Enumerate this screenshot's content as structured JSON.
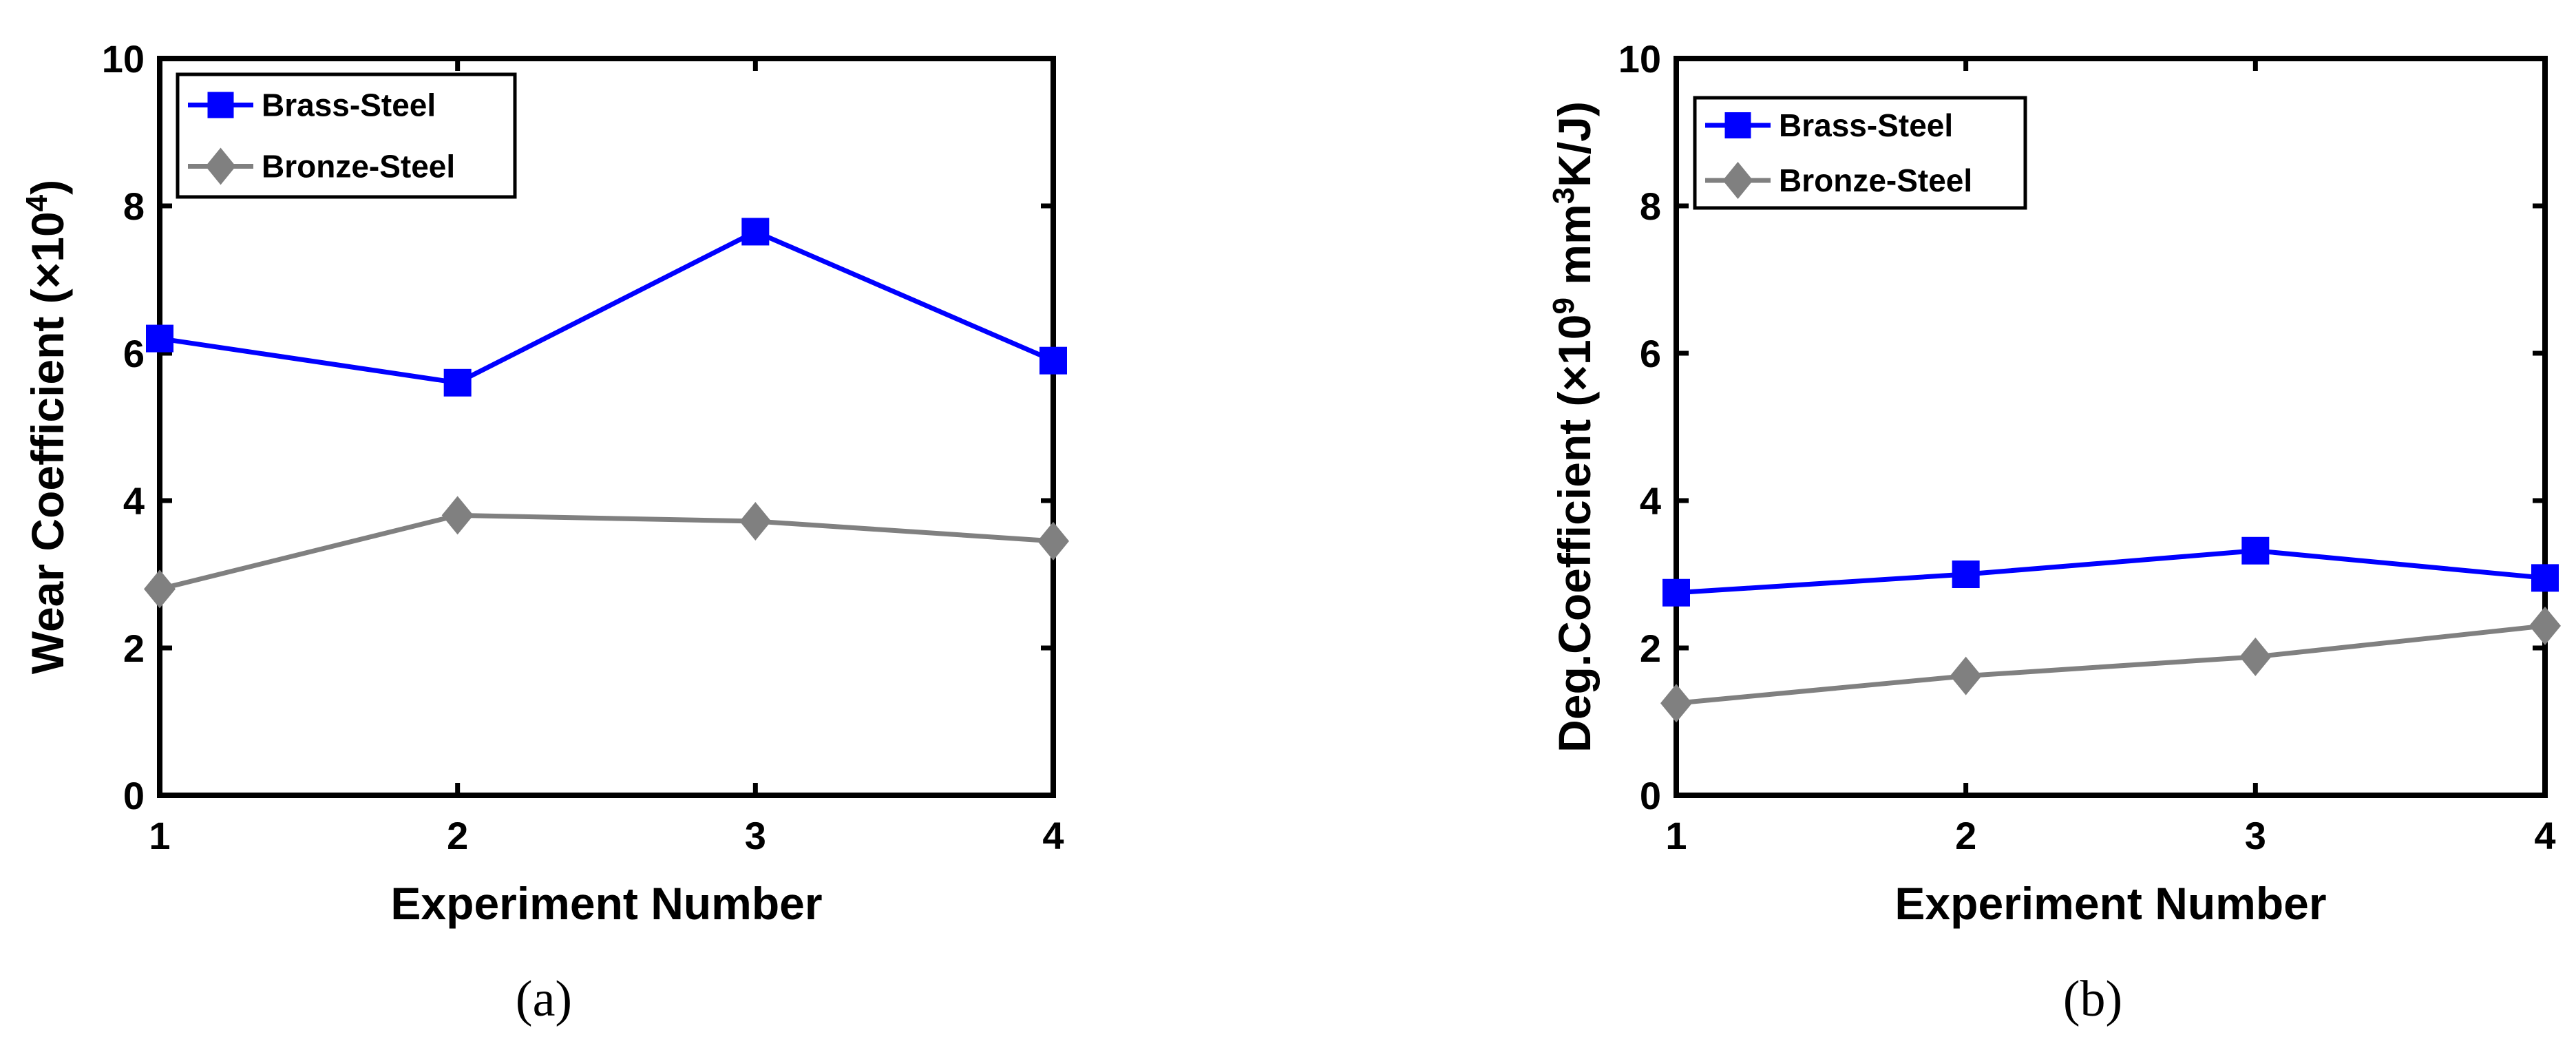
{
  "chart_data": [
    {
      "type": "line",
      "caption": "(a)",
      "xlabel": "Experiment Number",
      "ylabel": {
        "text": "Wear Coefficient (×10",
        "sup": "4",
        "tail": ")"
      },
      "x": [
        1,
        2,
        3,
        4
      ],
      "xticks": [
        "1",
        "2",
        "3",
        "4"
      ],
      "yticks": [
        "0",
        "2",
        "4",
        "6",
        "8",
        "10"
      ],
      "xlim": [
        1,
        4
      ],
      "ylim": [
        0,
        10
      ],
      "grid": false,
      "legend_position": "top-left",
      "series": [
        {
          "name": "Brass-Steel",
          "values": [
            6.2,
            5.6,
            7.65,
            5.9
          ],
          "color": "#0000ff",
          "marker": "square"
        },
        {
          "name": "Bronze-Steel",
          "values": [
            2.8,
            3.8,
            3.72,
            3.45
          ],
          "color": "#808080",
          "marker": "diamond"
        }
      ]
    },
    {
      "type": "line",
      "caption": "(b)",
      "xlabel": "Experiment Number",
      "ylabel": {
        "text": "Deg.Coefficient (×10",
        "sup": "9",
        "mid": " mm",
        "sup2": "3",
        "tail": "K/J)"
      },
      "x": [
        1,
        2,
        3,
        4
      ],
      "xticks": [
        "1",
        "2",
        "3",
        "4"
      ],
      "yticks": [
        "0",
        "2",
        "4",
        "6",
        "8",
        "10"
      ],
      "xlim": [
        1,
        4
      ],
      "ylim": [
        0,
        10
      ],
      "grid": false,
      "legend_position": "top-left",
      "series": [
        {
          "name": "Brass-Steel",
          "values": [
            2.75,
            3.0,
            3.32,
            2.95
          ],
          "color": "#0000ff",
          "marker": "square"
        },
        {
          "name": "Bronze-Steel",
          "values": [
            1.25,
            1.62,
            1.88,
            2.3
          ],
          "color": "#808080",
          "marker": "diamond"
        }
      ]
    }
  ]
}
